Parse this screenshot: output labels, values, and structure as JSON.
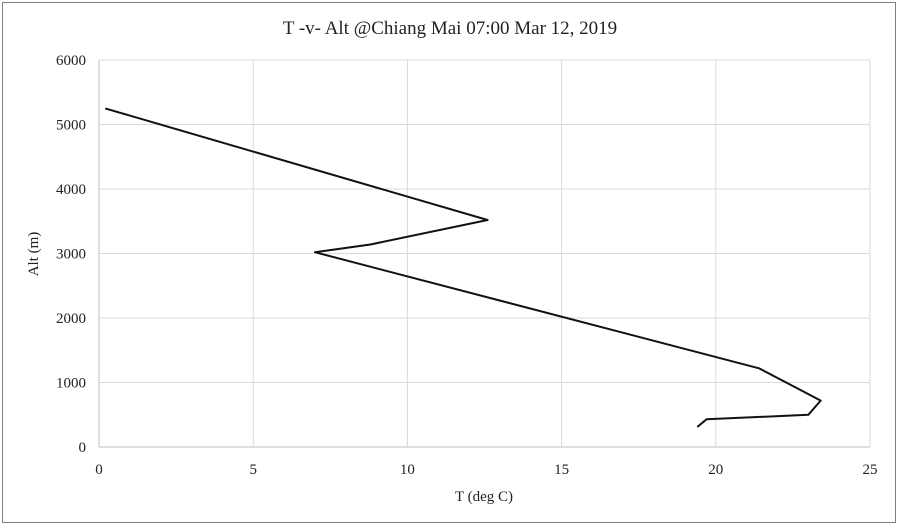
{
  "chart_data": {
    "type": "line",
    "title": "T -v- Alt @Chiang Mai 07:00 Mar 12, 2019",
    "xlabel": "T (deg C)",
    "ylabel": "Alt (m)",
    "xlim": [
      0,
      25
    ],
    "ylim": [
      0,
      6000
    ],
    "xticks": [
      0,
      5,
      10,
      15,
      20,
      25
    ],
    "yticks": [
      0,
      1000,
      2000,
      3000,
      4000,
      5000,
      6000
    ],
    "grid": true,
    "legend": "none",
    "series": [
      {
        "color": "#111111",
        "points": [
          {
            "x": 19.4,
            "y": 310
          },
          {
            "x": 19.7,
            "y": 430
          },
          {
            "x": 23.0,
            "y": 500
          },
          {
            "x": 23.4,
            "y": 720
          },
          {
            "x": 22.8,
            "y": 870
          },
          {
            "x": 21.4,
            "y": 1220
          },
          {
            "x": 7.0,
            "y": 3020
          },
          {
            "x": 8.8,
            "y": 3140
          },
          {
            "x": 12.6,
            "y": 3520
          },
          {
            "x": 0.2,
            "y": 5250
          }
        ]
      }
    ]
  }
}
